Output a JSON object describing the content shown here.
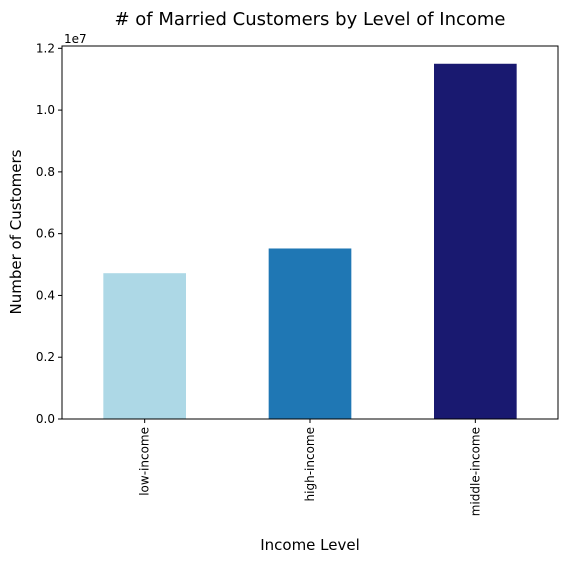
{
  "chart_data": {
    "type": "bar",
    "title": "# of Married Customers by Level of Income",
    "xlabel": "Income Level",
    "ylabel": "Number of Customers",
    "y_offset_label": "1e7",
    "categories": [
      "low-income",
      "high-income",
      "middle-income"
    ],
    "values": [
      4720000,
      5520000,
      11500000
    ],
    "colors": [
      "#add8e6",
      "#1f77b4",
      "#191970"
    ],
    "ylim": [
      0,
      12075000
    ],
    "yticks": [
      0,
      2000000,
      4000000,
      6000000,
      8000000,
      10000000,
      12000000
    ],
    "ytick_labels": [
      "0.0",
      "0.2",
      "0.4",
      "0.6",
      "0.8",
      "1.0",
      "1.2"
    ],
    "grid": false,
    "legend": "none"
  }
}
